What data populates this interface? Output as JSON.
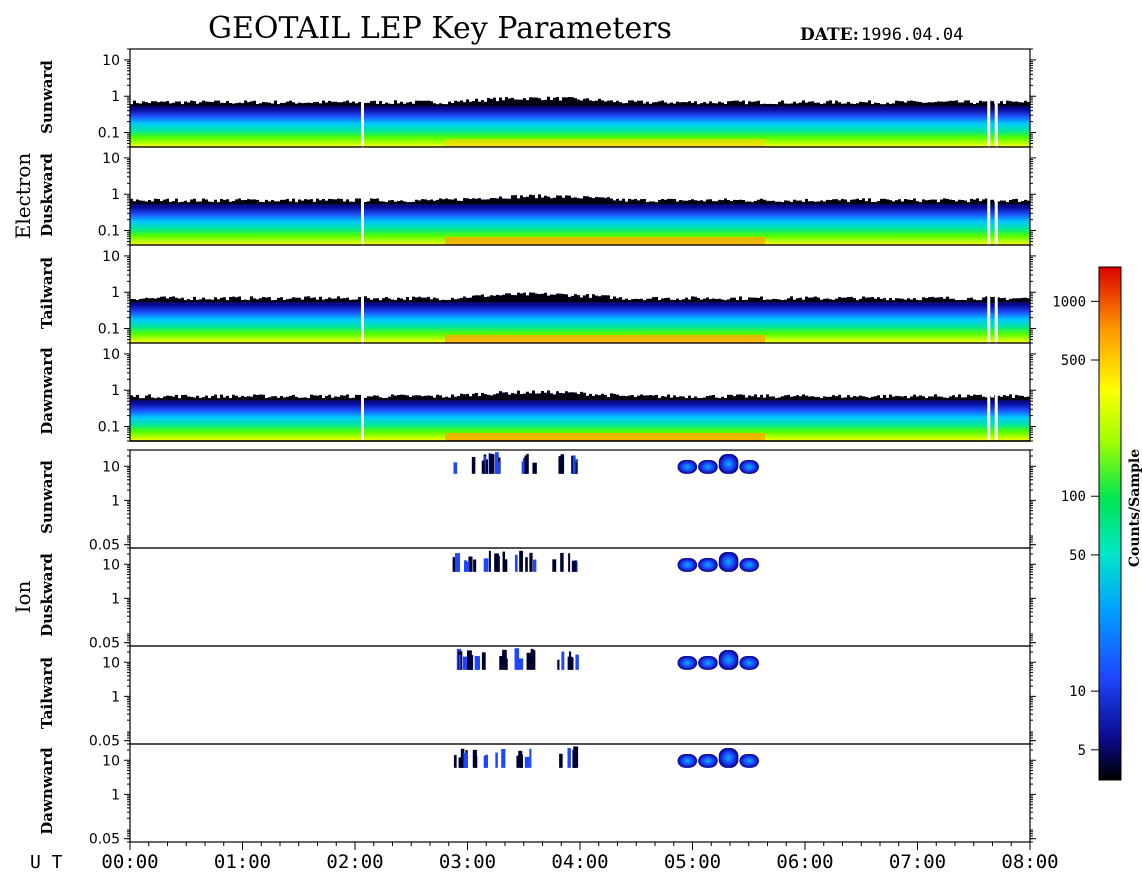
{
  "title": "GEOTAIL LEP Key Parameters",
  "date_label": "DATE:",
  "date_value": "1996.04.04",
  "ut_label": "U T",
  "colorbar": {
    "label": "Counts/Sample",
    "ticks": [
      "1000",
      "500",
      "100",
      "50",
      "10",
      "5"
    ],
    "tick_values": [
      1000,
      500,
      100,
      50,
      10,
      5
    ],
    "range": [
      3.5,
      1500
    ],
    "scale": "log",
    "colors": [
      "#000000",
      "#0a0a8c",
      "#1e46ff",
      "#00c8ff",
      "#00e6a0",
      "#50ff00",
      "#ffff00",
      "#ffb400",
      "#ff3c00",
      "#dc0000"
    ]
  },
  "groups": [
    {
      "label": "Electron",
      "panels": [
        "Sunward",
        "Duskward",
        "Tailward",
        "Dawnward"
      ]
    },
    {
      "label": "Ion",
      "panels": [
        "Sunward",
        "Duskward",
        "Tailward",
        "Dawnward"
      ]
    }
  ],
  "chart_data": {
    "type": "heatmap",
    "title": "GEOTAIL LEP Key Parameters",
    "xlabel": "U T",
    "x_ticks": [
      "00:00",
      "01:00",
      "02:00",
      "03:00",
      "04:00",
      "05:00",
      "06:00",
      "07:00",
      "08:00"
    ],
    "xlim": [
      "00:00",
      "08:00"
    ],
    "electron_y_ticks": [
      "10",
      "1",
      "0.1"
    ],
    "electron_ylim": [
      0.04,
      20
    ],
    "ion_y_ticks": [
      "10",
      "1",
      "0.05"
    ],
    "ion_ylim": [
      0.04,
      30
    ],
    "electron_data_gaps": [
      "02:04",
      "07:38",
      "07:42"
    ],
    "ion_activity_intervals": [
      {
        "start": "02:52",
        "end": "03:20"
      },
      {
        "start": "03:25",
        "end": "03:35"
      },
      {
        "start": "03:45",
        "end": "03:58"
      },
      {
        "start": "04:52",
        "end": "05:36"
      }
    ]
  }
}
